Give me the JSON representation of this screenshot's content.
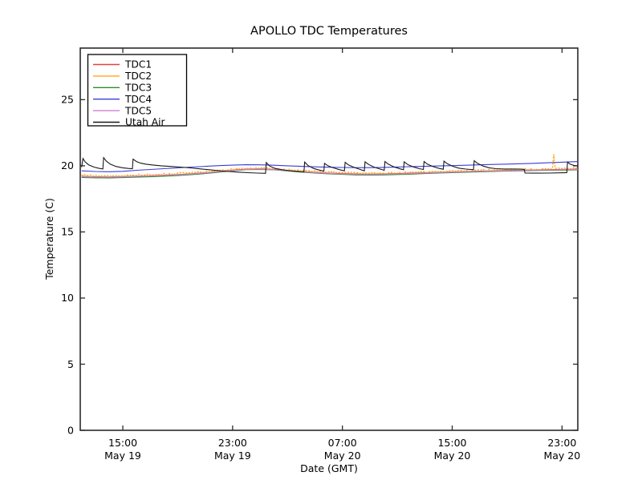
{
  "figure": {
    "background": "#ffffff",
    "frame_color": "#2b2b2b",
    "text_color": "#000000"
  },
  "chart_data": {
    "type": "line",
    "title": "APOLLO TDC Temperatures",
    "xlabel": "Date (GMT)",
    "ylabel": "Temperature (C)",
    "x_unit": "hours_since_May19_0000_GMT",
    "xlim": [
      11.9,
      48.15
    ],
    "ylim": [
      0,
      28.9
    ],
    "grid": false,
    "legend_position": "upper-left",
    "yticks": [
      0,
      5,
      10,
      15,
      20,
      25
    ],
    "xticks": [
      {
        "t": 15,
        "time": "15:00",
        "date": "May 19"
      },
      {
        "t": 23,
        "time": "23:00",
        "date": "May 19"
      },
      {
        "t": 31,
        "time": "07:00",
        "date": "May 20"
      },
      {
        "t": 39,
        "time": "15:00",
        "date": "May 20"
      },
      {
        "t": 47,
        "time": "23:00",
        "date": "May 20"
      }
    ],
    "series": [
      {
        "name": "TDC1",
        "color": "#e8413c",
        "style": "solid",
        "points": [
          [
            12,
            19.2
          ],
          [
            13,
            19.17
          ],
          [
            14,
            19.16
          ],
          [
            15,
            19.19
          ],
          [
            16,
            19.22
          ],
          [
            17,
            19.25
          ],
          [
            18,
            19.29
          ],
          [
            19,
            19.34
          ],
          [
            20,
            19.4
          ],
          [
            21,
            19.48
          ],
          [
            22,
            19.57
          ],
          [
            23,
            19.67
          ],
          [
            24,
            19.75
          ],
          [
            25,
            19.77
          ],
          [
            26,
            19.73
          ],
          [
            27,
            19.65
          ],
          [
            28,
            19.57
          ],
          [
            29,
            19.5
          ],
          [
            30,
            19.45
          ],
          [
            31,
            19.41
          ],
          [
            32,
            19.38
          ],
          [
            33,
            19.37
          ],
          [
            34,
            19.38
          ],
          [
            35,
            19.41
          ],
          [
            36,
            19.44
          ],
          [
            37,
            19.47
          ],
          [
            38,
            19.51
          ],
          [
            39,
            19.54
          ],
          [
            40,
            19.57
          ],
          [
            41,
            19.6
          ],
          [
            42,
            19.62
          ],
          [
            43,
            19.65
          ],
          [
            44,
            19.67
          ],
          [
            45,
            19.69
          ],
          [
            46,
            19.71
          ],
          [
            47,
            19.73
          ],
          [
            48.15,
            19.75
          ]
        ]
      },
      {
        "name": "TDC2",
        "color": "#ffa718",
        "style": "noisy",
        "noise": 0.055,
        "points": [
          [
            12,
            19.28
          ],
          [
            13,
            19.25
          ],
          [
            14,
            19.24
          ],
          [
            15,
            19.27
          ],
          [
            16,
            19.3
          ],
          [
            17,
            19.33
          ],
          [
            18,
            19.37
          ],
          [
            19,
            19.42
          ],
          [
            20,
            19.48
          ],
          [
            21,
            19.56
          ],
          [
            22,
            19.64
          ],
          [
            23,
            19.73
          ],
          [
            24,
            19.8
          ],
          [
            25,
            19.82
          ],
          [
            26,
            19.78
          ],
          [
            27,
            19.71
          ],
          [
            28,
            19.64
          ],
          [
            29,
            19.58
          ],
          [
            30,
            19.53
          ],
          [
            31,
            19.49
          ],
          [
            32,
            19.46
          ],
          [
            33,
            19.44
          ],
          [
            34,
            19.45
          ],
          [
            35,
            19.48
          ],
          [
            36,
            19.51
          ],
          [
            37,
            19.54
          ],
          [
            38,
            19.57
          ],
          [
            39,
            19.6
          ],
          [
            40,
            19.63
          ],
          [
            41,
            19.66
          ],
          [
            42,
            19.68
          ],
          [
            43,
            19.7
          ],
          [
            44,
            19.72
          ],
          [
            45,
            19.74
          ],
          [
            46.3,
            19.76
          ],
          [
            46.4,
            20.85
          ],
          [
            46.5,
            19.77
          ],
          [
            47,
            19.79
          ],
          [
            48.15,
            19.82
          ]
        ]
      },
      {
        "name": "TDC3",
        "color": "#2e8b2e",
        "style": "solid",
        "points": [
          [
            12,
            19.12
          ],
          [
            13,
            19.09
          ],
          [
            14,
            19.08
          ],
          [
            15,
            19.11
          ],
          [
            16,
            19.14
          ],
          [
            17,
            19.17
          ],
          [
            18,
            19.21
          ],
          [
            19,
            19.26
          ],
          [
            20,
            19.33
          ],
          [
            21,
            19.41
          ],
          [
            22,
            19.51
          ],
          [
            23,
            19.62
          ],
          [
            24,
            19.71
          ],
          [
            25,
            19.73
          ],
          [
            26,
            19.69
          ],
          [
            27,
            19.61
          ],
          [
            28,
            19.52
          ],
          [
            29,
            19.45
          ],
          [
            30,
            19.39
          ],
          [
            31,
            19.35
          ],
          [
            32,
            19.31
          ],
          [
            33,
            19.3
          ],
          [
            34,
            19.31
          ],
          [
            35,
            19.34
          ],
          [
            36,
            19.37
          ],
          [
            37,
            19.41
          ],
          [
            38,
            19.45
          ],
          [
            39,
            19.48
          ],
          [
            40,
            19.51
          ],
          [
            41,
            19.54
          ],
          [
            42,
            19.57
          ],
          [
            43,
            19.6
          ],
          [
            44,
            19.62
          ],
          [
            45,
            19.64
          ],
          [
            46,
            19.66
          ],
          [
            47,
            19.67
          ],
          [
            48.15,
            19.69
          ]
        ]
      },
      {
        "name": "TDC4",
        "color": "#3b3bdb",
        "style": "solid",
        "points": [
          [
            12,
            19.62
          ],
          [
            13,
            19.57
          ],
          [
            14,
            19.55
          ],
          [
            15,
            19.58
          ],
          [
            15.5,
            19.62
          ],
          [
            16,
            19.66
          ],
          [
            17,
            19.72
          ],
          [
            18,
            19.78
          ],
          [
            19,
            19.85
          ],
          [
            20,
            19.9
          ],
          [
            21,
            19.96
          ],
          [
            22,
            20.01
          ],
          [
            23,
            20.05
          ],
          [
            24,
            20.08
          ],
          [
            25,
            20.07
          ],
          [
            26,
            20.04
          ],
          [
            27,
            20.0
          ],
          [
            28,
            19.96
          ],
          [
            29,
            19.92
          ],
          [
            30,
            19.89
          ],
          [
            31,
            19.87
          ],
          [
            32,
            19.86
          ],
          [
            33,
            19.86
          ],
          [
            34,
            19.88
          ],
          [
            35,
            19.91
          ],
          [
            36,
            19.94
          ],
          [
            37,
            19.96
          ],
          [
            38,
            19.99
          ],
          [
            39,
            20.01
          ],
          [
            40,
            20.04
          ],
          [
            41,
            20.07
          ],
          [
            42,
            20.1
          ],
          [
            43,
            20.13
          ],
          [
            44,
            20.16
          ],
          [
            45,
            20.19
          ],
          [
            46,
            20.23
          ],
          [
            47,
            20.27
          ],
          [
            48.15,
            20.32
          ]
        ]
      },
      {
        "name": "TDC5",
        "color": "#cd7fd1",
        "style": "solid",
        "points": [
          [
            12,
            19.18
          ],
          [
            13,
            19.15
          ],
          [
            14,
            19.14
          ],
          [
            15,
            19.17
          ],
          [
            16,
            19.2
          ],
          [
            17,
            19.23
          ],
          [
            18,
            19.27
          ],
          [
            19,
            19.32
          ],
          [
            20,
            19.38
          ],
          [
            21,
            19.46
          ],
          [
            22,
            19.55
          ],
          [
            23,
            19.65
          ],
          [
            24,
            19.73
          ],
          [
            25,
            19.75
          ],
          [
            26,
            19.71
          ],
          [
            27,
            19.63
          ],
          [
            28,
            19.55
          ],
          [
            29,
            19.48
          ],
          [
            30,
            19.43
          ],
          [
            31,
            19.39
          ],
          [
            32,
            19.36
          ],
          [
            33,
            19.35
          ],
          [
            34,
            19.36
          ],
          [
            35,
            19.39
          ],
          [
            36,
            19.42
          ],
          [
            37,
            19.45
          ],
          [
            38,
            19.49
          ],
          [
            39,
            19.52
          ],
          [
            40,
            19.55
          ],
          [
            41,
            19.58
          ],
          [
            42,
            19.6
          ],
          [
            43,
            19.63
          ],
          [
            44,
            19.65
          ],
          [
            45,
            19.67
          ],
          [
            46,
            19.69
          ],
          [
            47,
            19.71
          ],
          [
            48.15,
            19.73
          ]
        ]
      },
      {
        "name": "Utah Air",
        "color": "#191919",
        "style": "solid",
        "points": [
          [
            12.0,
            19.9
          ],
          [
            12.1,
            20.55
          ],
          [
            12.25,
            20.3
          ],
          [
            12.5,
            20.08
          ],
          [
            12.9,
            19.9
          ],
          [
            13.3,
            19.8
          ],
          [
            13.55,
            19.76
          ],
          [
            13.6,
            20.62
          ],
          [
            13.8,
            20.35
          ],
          [
            14.1,
            20.12
          ],
          [
            14.5,
            19.95
          ],
          [
            15.0,
            19.85
          ],
          [
            15.4,
            19.8
          ],
          [
            15.7,
            19.78
          ],
          [
            15.75,
            20.5
          ],
          [
            16.0,
            20.32
          ],
          [
            16.3,
            20.2
          ],
          [
            16.7,
            20.12
          ],
          [
            17.2,
            20.06
          ],
          [
            17.8,
            20.0
          ],
          [
            18.5,
            19.95
          ],
          [
            19.2,
            19.9
          ],
          [
            19.9,
            19.84
          ],
          [
            20.6,
            19.77
          ],
          [
            21.3,
            19.7
          ],
          [
            22.0,
            19.63
          ],
          [
            22.7,
            19.57
          ],
          [
            23.4,
            19.52
          ],
          [
            24.1,
            19.48
          ],
          [
            24.8,
            19.45
          ],
          [
            25.4,
            19.43
          ],
          [
            25.45,
            20.25
          ],
          [
            25.7,
            19.98
          ],
          [
            26.1,
            19.8
          ],
          [
            26.6,
            19.7
          ],
          [
            27.1,
            19.63
          ],
          [
            27.6,
            19.58
          ],
          [
            28.2,
            19.55
          ],
          [
            28.25,
            20.28
          ],
          [
            28.5,
            20.02
          ],
          [
            28.9,
            19.8
          ],
          [
            29.3,
            19.68
          ],
          [
            29.65,
            19.6
          ],
          [
            29.7,
            20.18
          ],
          [
            29.95,
            20.0
          ],
          [
            30.35,
            19.84
          ],
          [
            30.8,
            19.7
          ],
          [
            31.15,
            19.62
          ],
          [
            31.2,
            20.26
          ],
          [
            31.45,
            20.06
          ],
          [
            31.85,
            19.88
          ],
          [
            32.3,
            19.72
          ],
          [
            32.6,
            19.62
          ],
          [
            32.65,
            20.3
          ],
          [
            32.9,
            20.1
          ],
          [
            33.3,
            19.9
          ],
          [
            33.75,
            19.75
          ],
          [
            34.05,
            19.66
          ],
          [
            34.1,
            20.32
          ],
          [
            34.35,
            20.12
          ],
          [
            34.75,
            19.92
          ],
          [
            35.2,
            19.77
          ],
          [
            35.45,
            19.7
          ],
          [
            35.5,
            20.3
          ],
          [
            35.75,
            20.1
          ],
          [
            36.15,
            19.92
          ],
          [
            36.6,
            19.78
          ],
          [
            36.9,
            19.72
          ],
          [
            36.95,
            20.32
          ],
          [
            37.2,
            20.12
          ],
          [
            37.6,
            19.94
          ],
          [
            38.05,
            19.8
          ],
          [
            38.35,
            19.74
          ],
          [
            38.4,
            20.35
          ],
          [
            38.65,
            20.15
          ],
          [
            39.05,
            19.96
          ],
          [
            39.5,
            19.82
          ],
          [
            40.0,
            19.75
          ],
          [
            40.55,
            19.7
          ],
          [
            40.6,
            20.38
          ],
          [
            40.85,
            20.18
          ],
          [
            41.25,
            19.98
          ],
          [
            41.7,
            19.85
          ],
          [
            42.2,
            19.78
          ],
          [
            42.8,
            19.76
          ],
          [
            43.5,
            19.76
          ],
          [
            44.0,
            19.75
          ],
          [
            44.25,
            19.73
          ],
          [
            44.3,
            19.45
          ],
          [
            45.0,
            19.44
          ],
          [
            46.0,
            19.45
          ],
          [
            47.1,
            19.47
          ],
          [
            47.35,
            19.48
          ],
          [
            47.4,
            20.28
          ],
          [
            47.6,
            20.12
          ],
          [
            47.9,
            20.02
          ],
          [
            48.15,
            19.98
          ]
        ]
      }
    ]
  }
}
